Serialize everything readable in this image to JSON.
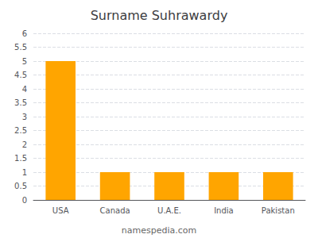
{
  "chart_data": {
    "type": "bar",
    "title": "Surname Suhrawardy",
    "categories": [
      "USA",
      "Canada",
      "U.A.E.",
      "India",
      "Pakistan"
    ],
    "values": [
      5,
      1,
      1,
      1,
      1
    ],
    "color": "#FFA500",
    "ylim": [
      0,
      6
    ],
    "yticks": [
      0,
      0.5,
      1,
      1.5,
      2,
      2.5,
      3,
      3.5,
      4,
      4.5,
      5,
      5.5,
      6
    ],
    "grid": true,
    "annotations": [
      "namespedia.com"
    ]
  }
}
